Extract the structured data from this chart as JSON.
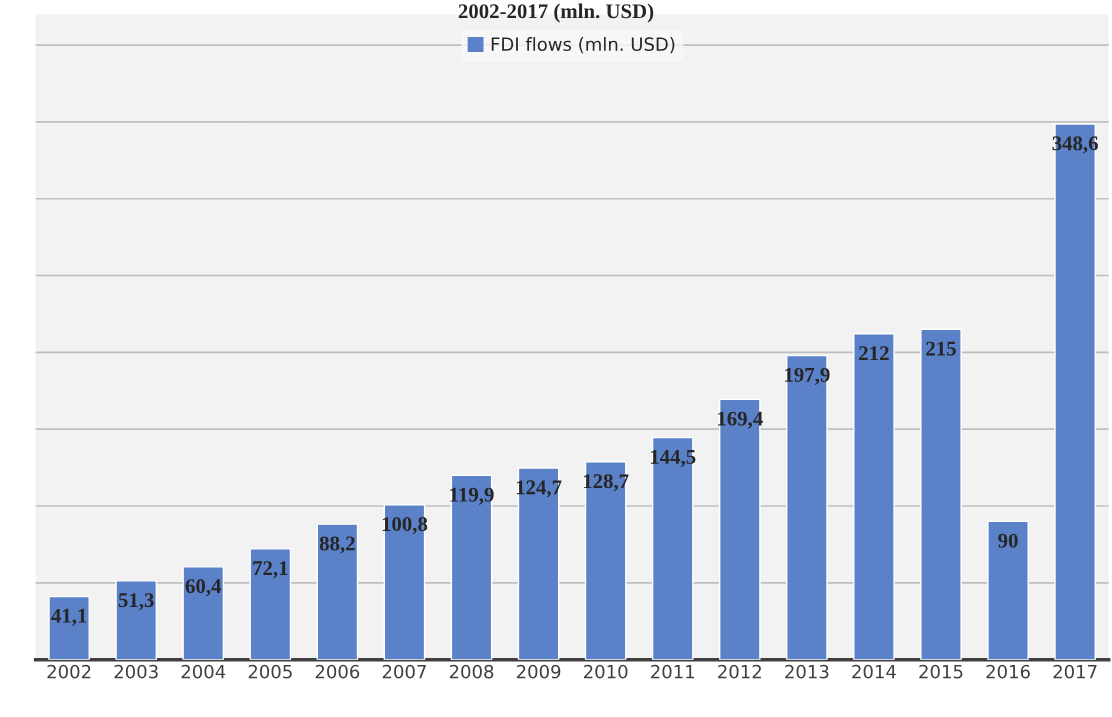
{
  "chart_data": {
    "type": "bar",
    "title": "2002-2017 (mln. USD)",
    "categories": [
      "2002",
      "2003",
      "2004",
      "2005",
      "2006",
      "2007",
      "2008",
      "2009",
      "2010",
      "2011",
      "2012",
      "2013",
      "2014",
      "2015",
      "2016",
      "2017"
    ],
    "series": [
      {
        "name": "FDI flows (mln. USD)",
        "color": "#5b82c8",
        "values": [
          41.1,
          51.3,
          60.4,
          72.1,
          88.2,
          100.8,
          119.9,
          124.7,
          128.7,
          144.5,
          169.4,
          197.9,
          212,
          215,
          90,
          348.6
        ],
        "value_labels": [
          "41,1",
          "51,3",
          "60,4",
          "72,1",
          "88,2",
          "100,8",
          "119,9",
          "124,7",
          "128,7",
          "144,5",
          "169,4",
          "197,9",
          "212",
          "215",
          "90",
          "348,6"
        ]
      }
    ],
    "ylim": [
      0,
      420
    ],
    "yticks": [
      {
        "value": 0,
        "label": null
      },
      {
        "value": 50,
        "label": null
      },
      {
        "value": 100,
        "label": null
      },
      {
        "value": 150,
        "label": null
      },
      {
        "value": 200,
        "label": null
      },
      {
        "value": 250,
        "label": null
      },
      {
        "value": 300,
        "label": null
      },
      {
        "value": 350,
        "label": null
      },
      {
        "value": 400,
        "label": null
      }
    ],
    "grid": "y",
    "legend": "top",
    "tick_labels": "x"
  }
}
